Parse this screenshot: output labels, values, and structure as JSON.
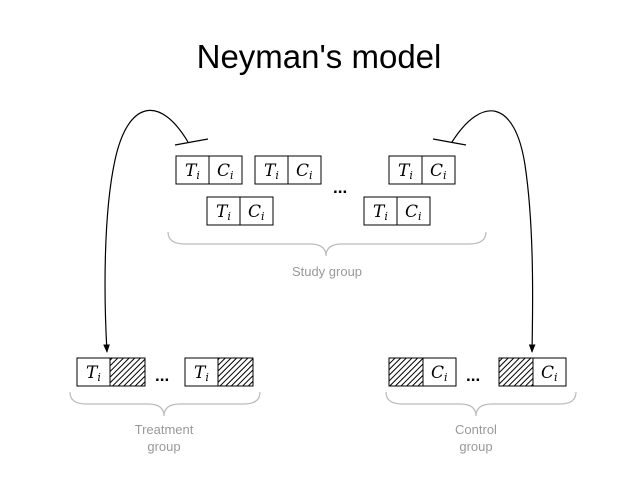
{
  "title": "Neyman's model",
  "cell": {
    "t_main": "T",
    "c_main": "C",
    "subscript": "i"
  },
  "ellipsis": "...",
  "labels": {
    "study_group": "Study group",
    "treatment_line1": "Treatment",
    "treatment_line2": "group",
    "control_line1": "Control",
    "control_line2": "group"
  },
  "colors": {
    "stroke": "#000000",
    "caption": "#999999",
    "brace": "#bbbbbb"
  }
}
